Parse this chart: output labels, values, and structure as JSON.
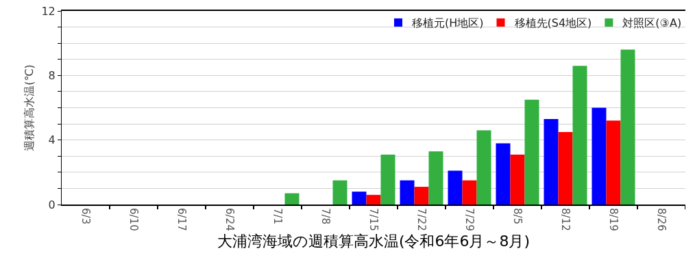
{
  "chart_data": {
    "type": "bar",
    "xlabel": "大浦湾海域の週積算高水温(令和6年6月～8月)",
    "ylabel": "週積算高水温(℃)",
    "categories": [
      "6/3",
      "6/10",
      "6/17",
      "6/24",
      "7/1",
      "7/8",
      "7/15",
      "7/22",
      "7/29",
      "8/5",
      "8/12",
      "8/19",
      "8/26"
    ],
    "series": [
      {
        "name": "移植元(H地区)",
        "color": "#0000ff",
        "values": [
          null,
          null,
          null,
          null,
          null,
          null,
          0.8,
          1.5,
          2.1,
          3.8,
          5.3,
          6.0,
          null
        ]
      },
      {
        "name": "移植先(S4地区)",
        "color": "#ff0000",
        "values": [
          null,
          null,
          null,
          null,
          null,
          null,
          0.6,
          1.1,
          1.5,
          3.1,
          4.5,
          5.2,
          null
        ]
      },
      {
        "name": "対照区(③A)",
        "color": "#33b040",
        "values": [
          null,
          null,
          null,
          null,
          0.7,
          1.5,
          3.1,
          3.3,
          4.6,
          6.5,
          8.6,
          9.6,
          null
        ]
      }
    ],
    "ylim": [
      0,
      12
    ],
    "yticks": [
      0,
      {
        "value": 1,
        "label": null
      },
      {
        "value": 2,
        "label": null
      },
      {
        "value": 3,
        "label": null
      },
      4,
      {
        "value": 5,
        "label": null
      },
      {
        "value": 6,
        "label": null
      },
      {
        "value": 7,
        "label": null
      },
      8,
      {
        "value": 9,
        "label": null
      },
      {
        "value": 10,
        "label": null
      },
      {
        "value": 11,
        "label": null
      },
      12
    ],
    "grid": "y",
    "legend": "top right"
  }
}
